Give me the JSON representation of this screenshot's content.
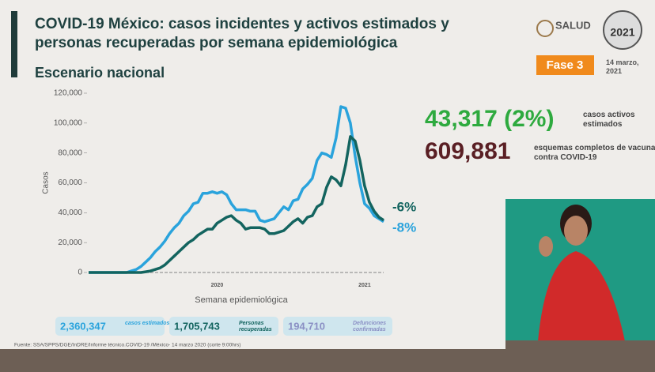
{
  "header": {
    "title": "COVID-19 México: casos incidentes y activos estimados y personas recuperadas por semana epidemiológica",
    "subtitle": "Escenario nacional",
    "logo_salud": "SALUD",
    "logo_year": "2021",
    "phase": "Fase 3",
    "date": "14 marzo, 2021"
  },
  "stats": {
    "active": "43,317 (2%)",
    "active_label": "casos activos estimados",
    "vaccines": "609,881",
    "vaccines_label": "esquemas completos de vacunación contra COVID-19"
  },
  "chart_data": {
    "type": "line",
    "ylabel": "Casos",
    "xlabel": "Semana epidemiológica",
    "categories": [
      null,
      null,
      null,
      null,
      null,
      null,
      null,
      null,
      null,
      null,
      null,
      null,
      null,
      null,
      null,
      null,
      null,
      null,
      null,
      null,
      null,
      null,
      null,
      null,
      null,
      null,
      null,
      "2020",
      null,
      null,
      null,
      null,
      null,
      null,
      null,
      null,
      null,
      null,
      null,
      null,
      null,
      null,
      null,
      null,
      null,
      null,
      null,
      null,
      null,
      null,
      null,
      null,
      null,
      null,
      null,
      null,
      null,
      null,
      "2021",
      null,
      null,
      null,
      null
    ],
    "ylim": [
      0,
      120000
    ],
    "yticks": [
      0,
      {
        "value": 20000,
        "label": "20,000"
      },
      {
        "value": 40000,
        "label": "40,000"
      },
      {
        "value": 60000,
        "label": "60,000"
      },
      {
        "value": 80000,
        "label": "80,000"
      },
      {
        "value": 100000,
        "label": "100,000"
      },
      {
        "value": 120000,
        "label": "120,000"
      }
    ],
    "series": [
      {
        "color": "#2aa3dc",
        "values": [
          0,
          0,
          0,
          0,
          0,
          0,
          0,
          0,
          0,
          1000,
          2000,
          4000,
          7000,
          10000,
          14000,
          17000,
          21000,
          26000,
          30000,
          33000,
          38000,
          41000,
          46000,
          47000,
          53000,
          53000,
          54000,
          53000,
          54000,
          52000,
          46000,
          42000,
          42000,
          42000,
          41000,
          41000,
          35000,
          34000,
          35000,
          36000,
          40000,
          44000,
          42000,
          48000,
          49000,
          56000,
          59000,
          63000,
          75000,
          80000,
          79000,
          77000,
          90000,
          111000,
          110000,
          100000,
          78000,
          60000,
          46000,
          43000,
          38000,
          36000,
          34000
        ]
      },
      {
        "color": "#13645f",
        "values": [
          0,
          0,
          0,
          0,
          0,
          0,
          0,
          0,
          0,
          0,
          0,
          0,
          500,
          1000,
          2000,
          3000,
          5000,
          8000,
          11000,
          14000,
          17000,
          20000,
          22000,
          25000,
          27000,
          29000,
          29000,
          33000,
          35000,
          37000,
          38000,
          35000,
          33000,
          29000,
          30000,
          30000,
          30000,
          29000,
          26000,
          26000,
          27000,
          28000,
          31000,
          34000,
          36000,
          33000,
          37000,
          38000,
          44000,
          46000,
          57000,
          64000,
          62000,
          58000,
          72000,
          91000,
          88000,
          75000,
          58000,
          47000,
          41000,
          37000,
          35000
        ]
      }
    ],
    "annotations": [
      {
        "text": "-6%",
        "color": "#13645f"
      },
      {
        "text": "-8%",
        "color": "#2aa3dc"
      }
    ]
  },
  "totals": [
    {
      "value": "2,360,347",
      "label": "casos estimados"
    },
    {
      "value": "1,705,743",
      "label": "Personas recuperadas"
    },
    {
      "value": "194,710",
      "label": "Defunciones confirmadas"
    }
  ],
  "footer": "Fuente: SSA/SPPS/DGE/InDRE/Informe técnico.COVID-19 /México- 14 marzo 2020 (corte 9:00hrs)"
}
